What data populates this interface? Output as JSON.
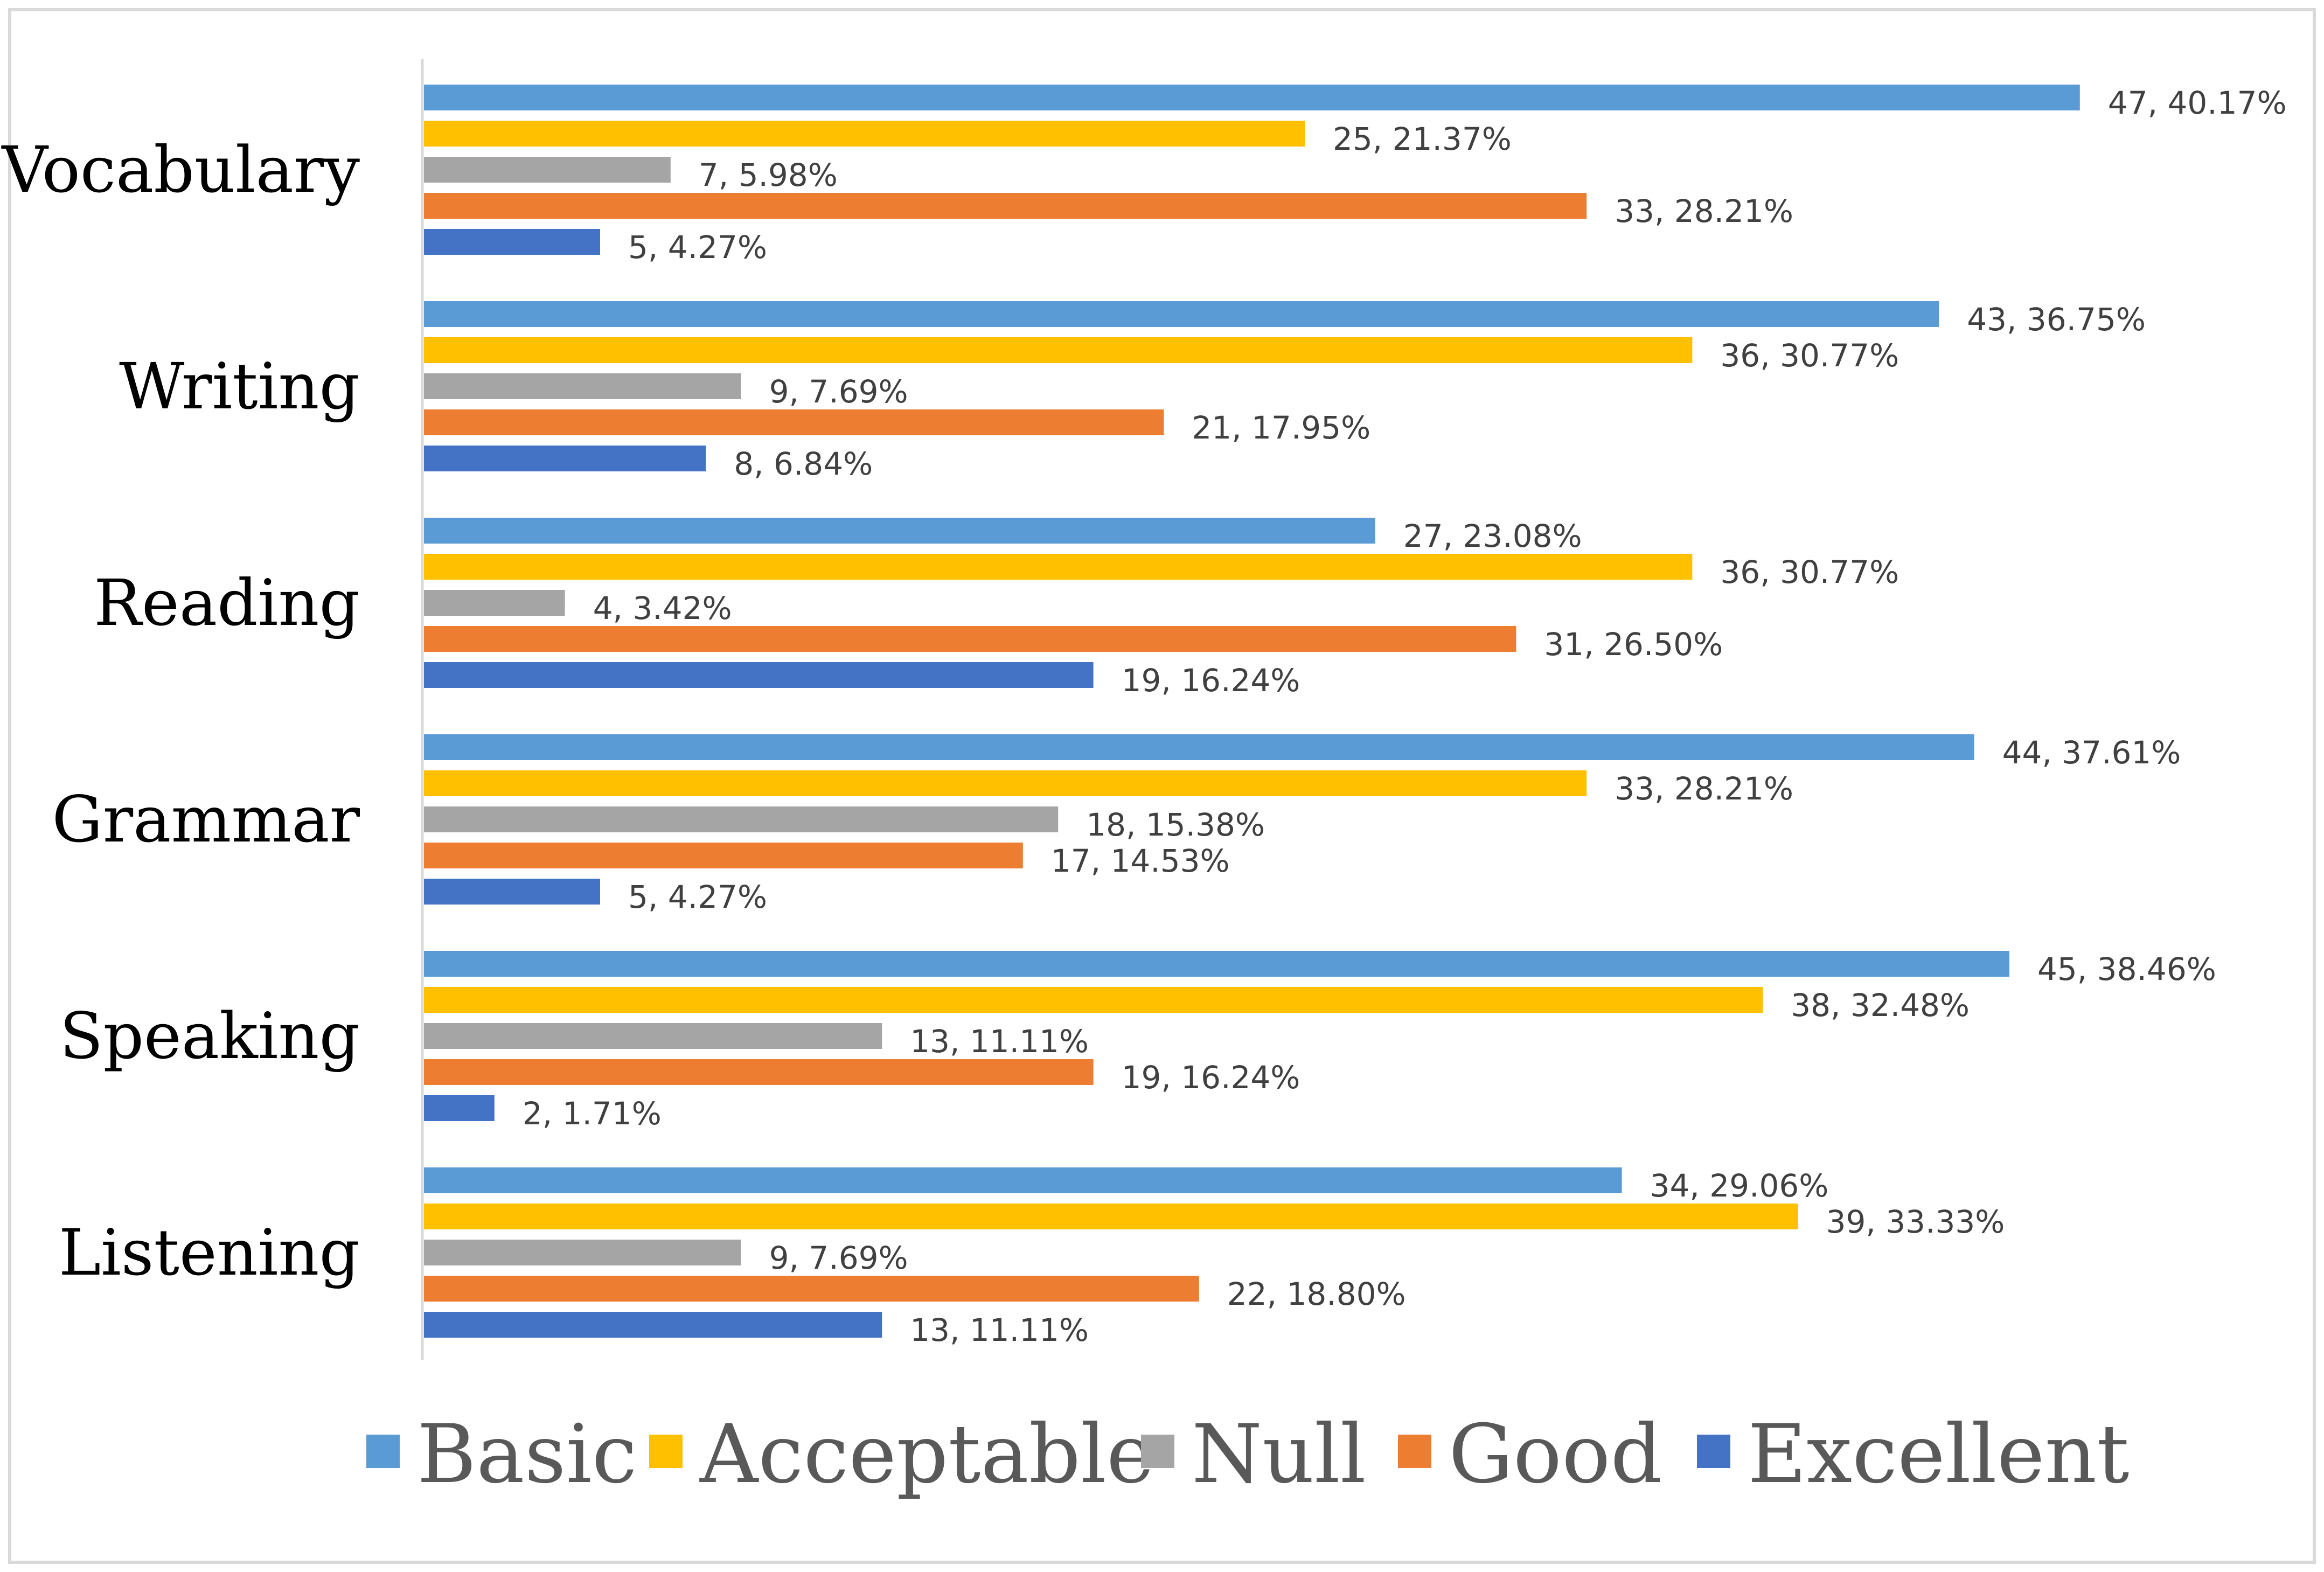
{
  "chart_data": {
    "type": "bar",
    "orientation": "horizontal",
    "title": "",
    "xlabel": "",
    "ylabel": "",
    "xlim": [
      0,
      47
    ],
    "grid": false,
    "legend_position": "bottom",
    "categories": [
      "Vocabulary",
      "Writing",
      "Reading",
      "Grammar",
      "Speaking",
      "Listening"
    ],
    "series": [
      {
        "name": "Basic",
        "color": "#5B9BD5",
        "values": [
          47,
          43,
          27,
          44,
          45,
          34
        ],
        "labels": [
          "47, 40.17%",
          "43, 36.75%",
          "27, 23.08%",
          "44, 37.61%",
          "45, 38.46%",
          "34, 29.06%"
        ]
      },
      {
        "name": "Acceptable",
        "color": "#FFC000",
        "values": [
          25,
          36,
          36,
          33,
          38,
          39
        ],
        "labels": [
          "25, 21.37%",
          "36, 30.77%",
          "36, 30.77%",
          "33, 28.21%",
          "38, 32.48%",
          "39, 33.33%"
        ]
      },
      {
        "name": "Null",
        "color": "#A5A5A5",
        "values": [
          7,
          9,
          4,
          18,
          13,
          9
        ],
        "labels": [
          "7, 5.98%",
          "9, 7.69%",
          "4, 3.42%",
          "18, 15.38%",
          "13, 11.11%",
          "9, 7.69%"
        ]
      },
      {
        "name": "Good",
        "color": "#ED7D31",
        "values": [
          33,
          21,
          31,
          17,
          19,
          22
        ],
        "labels": [
          "33, 28.21%",
          "21, 17.95%",
          "31, 26.50%",
          "17, 14.53%",
          "19, 16.24%",
          "22, 18.80%"
        ]
      },
      {
        "name": "Excellent",
        "color": "#4472C4",
        "values": [
          5,
          8,
          19,
          5,
          2,
          13
        ],
        "labels": [
          "5, 4.27%",
          "8, 6.84%",
          "19, 16.24%",
          "5, 4.27%",
          "2, 1.71%",
          "13, 11.11%"
        ]
      }
    ]
  }
}
